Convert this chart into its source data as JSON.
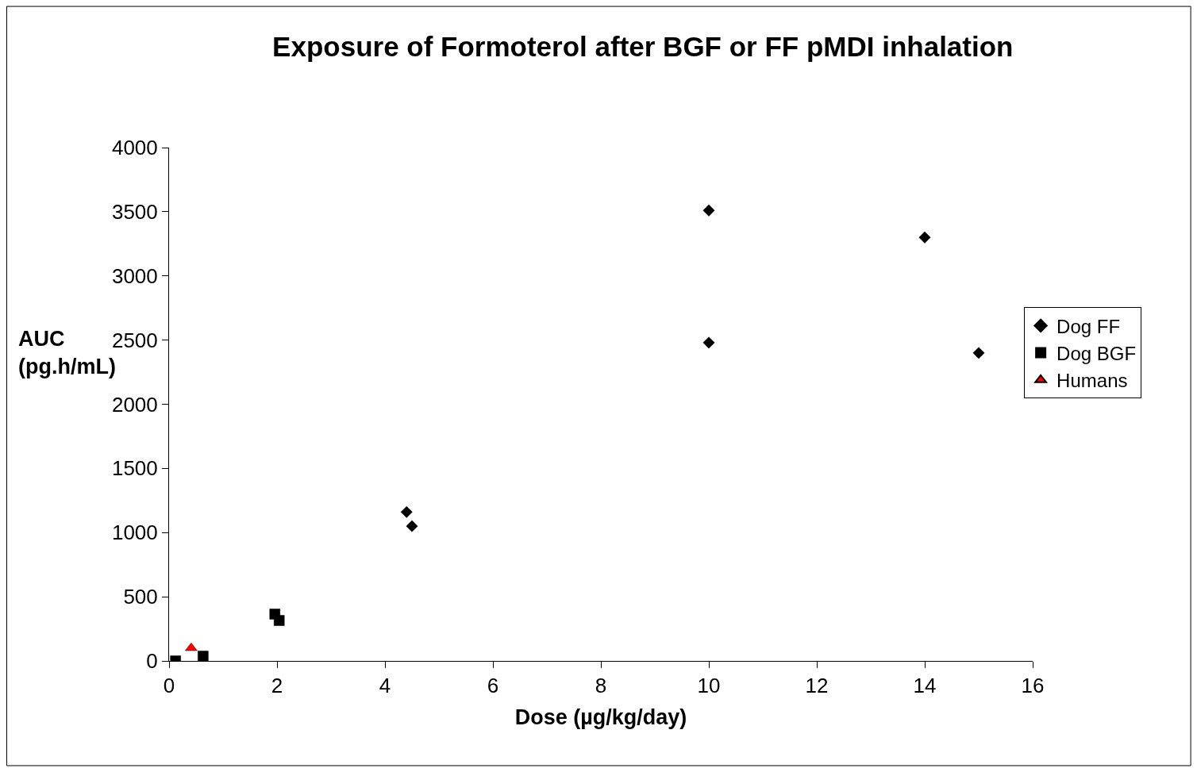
{
  "chart_data": {
    "type": "scatter",
    "title": "Exposure of Formoterol after BGF or FF pMDI inhalation",
    "xlabel": "Dose (µg/kg/day)",
    "ylabel": "AUC\n(pg.h/mL)",
    "xlim": [
      0,
      16
    ],
    "xticks": [
      0,
      2,
      4,
      6,
      8,
      10,
      12,
      14,
      16
    ],
    "ylim": [
      0,
      4000
    ],
    "yticks": [
      0,
      500,
      1000,
      1500,
      2000,
      2500,
      3000,
      3500,
      4000
    ],
    "legend": "right",
    "series": [
      {
        "name": "Dog FF",
        "color": "#000000",
        "marker": "diamond",
        "x": [
          4.4,
          4.5,
          10,
          10,
          14,
          15
        ],
        "values": [
          1160,
          1050,
          3510,
          2480,
          3300,
          2400
        ]
      },
      {
        "name": "Dog BGF",
        "color": "#000000",
        "marker": "square",
        "x": [
          0.12,
          0.63,
          1.96,
          2.04
        ],
        "values": [
          0,
          37,
          365,
          315
        ]
      },
      {
        "name": "Humans",
        "color": "#ff0000",
        "marker": "triangle",
        "x": [
          0.41
        ],
        "values": [
          100
        ]
      }
    ]
  }
}
